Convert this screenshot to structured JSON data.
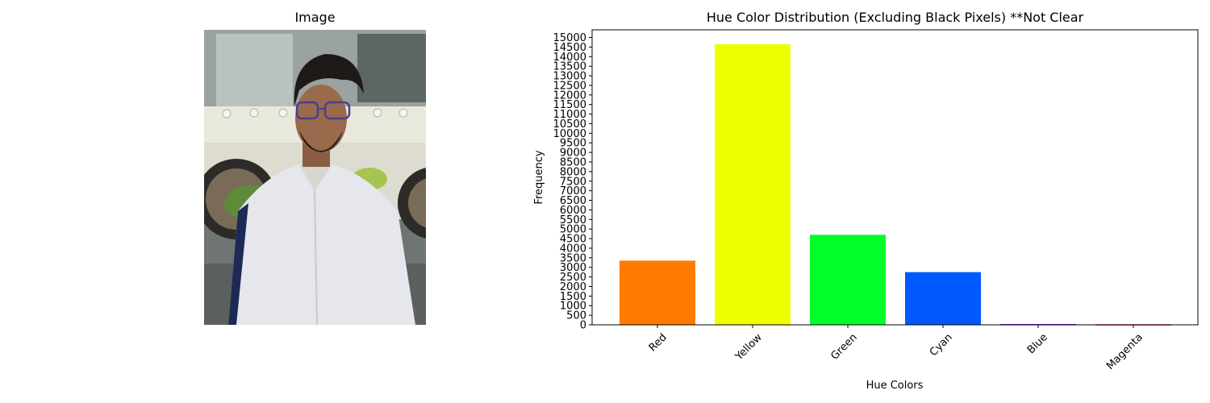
{
  "left_panel": {
    "title": "Image"
  },
  "chart_data": {
    "type": "bar",
    "title": "Hue Color Distribution (Excluding Black Pixels) **Not Clear",
    "xlabel": "Hue Colors",
    "ylabel": "Frequency",
    "categories": [
      "Red",
      "Yellow",
      "Green",
      "Cyan",
      "Blue",
      "Magenta"
    ],
    "values": [
      3350,
      14650,
      4700,
      2750,
      40,
      30
    ],
    "colors": [
      "#ff7b00",
      "#eeff00",
      "#00ff2a",
      "#0059ff",
      "#8800ff",
      "#ff006e"
    ],
    "ylim": [
      0,
      15400
    ],
    "yticks": [
      0,
      500,
      1000,
      1500,
      2000,
      2500,
      3000,
      3500,
      4000,
      4500,
      5000,
      5500,
      6000,
      6500,
      7000,
      7500,
      8000,
      8500,
      9000,
      9500,
      10000,
      10500,
      11000,
      11500,
      12000,
      12500,
      13000,
      13500,
      14000,
      14500,
      15000
    ],
    "xtick_rotation": 45,
    "grid": false,
    "legend": false
  }
}
